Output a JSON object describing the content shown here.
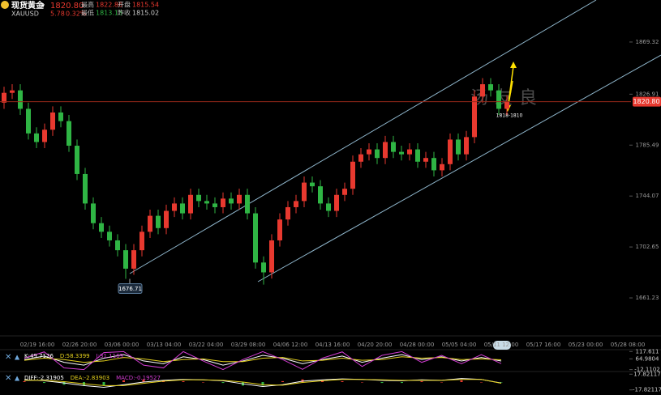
{
  "header": {
    "name": "现货黄金",
    "symbol": "XAUUSD",
    "price": "1820.80",
    "change": "5.78",
    "change_pct": "0.32%",
    "high_label": "最高",
    "high": "1822.86",
    "open_label": "开盘",
    "open": "1815.54",
    "low_label": "最低",
    "low": "1813.13",
    "prev_close_label": "昨收",
    "prev_close": "1815.02"
  },
  "chart_data": {
    "type": "candlestick",
    "open": [
      1820,
      1828,
      1830,
      1815,
      1795,
      1788,
      1798,
      1812,
      1805,
      1785,
      1762,
      1738,
      1722,
      1715,
      1708,
      1700,
      1685,
      1700,
      1715,
      1728,
      1718,
      1732,
      1738,
      1730,
      1745,
      1740,
      1738,
      1735,
      1742,
      1738,
      1745,
      1730,
      1690,
      1682,
      1708,
      1725,
      1735,
      1740,
      1755,
      1752,
      1738,
      1732,
      1745,
      1750,
      1772,
      1778,
      1782,
      1775,
      1788,
      1780,
      1778,
      1782,
      1772,
      1775,
      1765,
      1770,
      1790,
      1778,
      1792,
      1825,
      1835,
      1830,
      1815
    ],
    "high": [
      1833,
      1835,
      1835,
      1820,
      1800,
      1803,
      1817,
      1817,
      1810,
      1790,
      1767,
      1743,
      1727,
      1720,
      1713,
      1705,
      1705,
      1720,
      1733,
      1733,
      1737,
      1743,
      1743,
      1750,
      1750,
      1745,
      1743,
      1747,
      1747,
      1750,
      1750,
      1735,
      1695,
      1713,
      1730,
      1740,
      1745,
      1760,
      1760,
      1757,
      1743,
      1750,
      1755,
      1777,
      1783,
      1787,
      1787,
      1793,
      1793,
      1785,
      1787,
      1787,
      1780,
      1780,
      1775,
      1795,
      1795,
      1797,
      1830,
      1840,
      1840,
      1835,
      1826
    ],
    "low": [
      1815,
      1823,
      1810,
      1790,
      1783,
      1783,
      1793,
      1800,
      1780,
      1757,
      1733,
      1717,
      1710,
      1703,
      1695,
      1676.71,
      1680,
      1695,
      1710,
      1713,
      1713,
      1727,
      1725,
      1725,
      1735,
      1733,
      1730,
      1730,
      1733,
      1733,
      1725,
      1685,
      1672,
      1677,
      1703,
      1720,
      1730,
      1735,
      1747,
      1733,
      1727,
      1727,
      1740,
      1745,
      1767,
      1773,
      1770,
      1770,
      1775,
      1773,
      1773,
      1767,
      1767,
      1760,
      1760,
      1765,
      1773,
      1773,
      1787,
      1820,
      1825,
      1810,
      1810
    ],
    "close": [
      1828,
      1830,
      1815,
      1795,
      1788,
      1798,
      1812,
      1805,
      1785,
      1762,
      1738,
      1722,
      1715,
      1708,
      1700,
      1685,
      1700,
      1715,
      1728,
      1718,
      1732,
      1738,
      1730,
      1745,
      1740,
      1738,
      1735,
      1742,
      1738,
      1745,
      1730,
      1690,
      1682,
      1708,
      1725,
      1735,
      1740,
      1755,
      1752,
      1738,
      1732,
      1745,
      1750,
      1772,
      1778,
      1782,
      1775,
      1788,
      1780,
      1778,
      1782,
      1772,
      1775,
      1765,
      1770,
      1790,
      1778,
      1792,
      1825,
      1835,
      1830,
      1815,
      1820.8
    ],
    "up_color": "#e8392f",
    "down_color": "#2fb544",
    "ylim": [
      1633.6,
      1903.5
    ],
    "yticks": [
      1661.23,
      1702.65,
      1744.07,
      1785.49,
      1826.91,
      1869.32
    ],
    "current_price": {
      "value": 1820.8,
      "label": "1820.80"
    },
    "low_point": 1676.71,
    "annotation": "1818-1810",
    "watermark": "汤友良",
    "x_labels": [
      "02/19 16:00",
      "02/26 20:00",
      "03/06 00:00",
      "03/13 04:00",
      "03/22 04:00",
      "03/29 08:00",
      "04/06 12:00",
      "04/13 16:00",
      "04/20 20:00",
      "04/28 00:00",
      "05/05 04:00",
      "05/11 12:00",
      "05/17 16:00",
      "05/23 00:00",
      "05/28 08:00"
    ]
  },
  "indicators": [
    {
      "ylim": [
        -20,
        125
      ],
      "yticks": [
        117.611,
        64.9804,
        -12.1102
      ],
      "series": [
        {
          "label": "K:49.7126",
          "color": "#ffffff",
          "values": [
            60,
            85,
            40,
            20,
            70,
            95,
            50,
            30,
            80,
            60,
            20,
            50,
            90,
            70,
            30,
            60,
            85,
            40,
            70,
            95,
            60,
            80,
            50,
            75,
            49.7126
          ]
        },
        {
          "label": "D:58.3399",
          "color": "#e6d21c",
          "values": [
            55,
            70,
            60,
            40,
            50,
            75,
            65,
            45,
            60,
            65,
            45,
            45,
            70,
            75,
            50,
            55,
            70,
            55,
            60,
            80,
            70,
            75,
            60,
            65,
            58.3399
          ]
        },
        {
          "label": "J:31.1169",
          "color": "#d23cd2",
          "values": [
            70,
            115,
            0,
            -12,
            110,
            117,
            20,
            0,
            117,
            50,
            -12,
            60,
            117,
            60,
            -10,
            70,
            115,
            10,
            90,
            117,
            40,
            90,
            30,
            95,
            31.1169
          ]
        }
      ]
    },
    {
      "ylim": [
        -22,
        22
      ],
      "yticks": [
        17.82117,
        -17.82117
      ],
      "series": [
        {
          "label": "DIFF:-2.31905",
          "color": "#ffffff",
          "values": [
            5,
            3,
            -2,
            -8,
            -12,
            -6,
            0,
            4,
            6,
            5,
            3,
            -4,
            -10,
            -6,
            2,
            5,
            7,
            6,
            4,
            3,
            5,
            4,
            8,
            6,
            -2.31905
          ]
        },
        {
          "label": "DEA:-2.83903",
          "color": "#e6d21c",
          "values": [
            4,
            4,
            1,
            -4,
            -8,
            -8,
            -3,
            2,
            5,
            5,
            4,
            0,
            -6,
            -7,
            -1,
            3,
            6,
            6,
            5,
            4,
            4,
            4,
            6,
            6,
            -2.83903
          ]
        }
      ],
      "bars": {
        "label": "MACD:-0.19527",
        "color": "#d23cd2",
        "up_color": "#e8392f",
        "down_color": "#2fb544",
        "values": [
          2,
          -2,
          -6,
          -8,
          -8,
          4,
          6,
          4,
          2,
          0,
          -2,
          -8,
          -8,
          2,
          6,
          4,
          2,
          0,
          -2,
          -2,
          2,
          0,
          4,
          0,
          -0.19527
        ]
      }
    }
  ]
}
